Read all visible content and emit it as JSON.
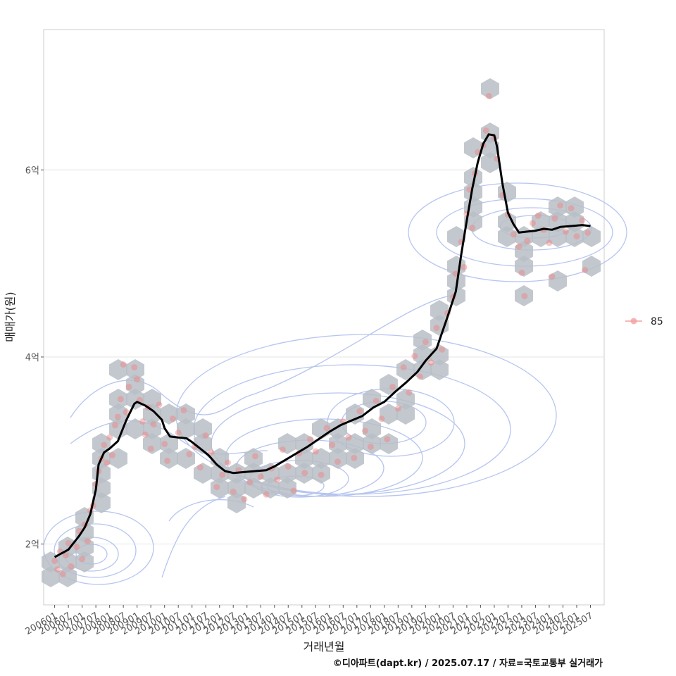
{
  "chart_data": {
    "type": "line",
    "xlabel": "거래년월",
    "ylabel": "매매가(원)",
    "caption": "©디아파트(dapt.kr) / 2025.07.17 / 자료=국토교통부 실거래가",
    "x_ticks": [
      "200601",
      "200607",
      "200701",
      "200707",
      "200801",
      "200807",
      "200901",
      "200907",
      "201001",
      "201007",
      "201101",
      "201107",
      "201201",
      "201207",
      "201301",
      "201307",
      "201401",
      "201407",
      "201501",
      "201507",
      "201601",
      "201607",
      "201701",
      "201707",
      "201801",
      "201807",
      "201901",
      "201907",
      "202001",
      "202007",
      "202101",
      "202107",
      "202201",
      "202207",
      "202301",
      "202307",
      "202401",
      "202407",
      "202501",
      "202507"
    ],
    "y_ticks": [
      {
        "value": 20000,
        "label": "2억"
      },
      {
        "value": 40000,
        "label": "4억"
      },
      {
        "value": 60000,
        "label": "6억"
      }
    ],
    "xlim": [
      2005.6,
      2026.0
    ],
    "ylim": [
      13500,
      75000
    ],
    "legend": {
      "position": "right",
      "entries": [
        {
          "label": "85",
          "color": "#f08080"
        }
      ]
    },
    "series": [
      {
        "name": "85",
        "kind": "trend",
        "color": "#000000",
        "points": [
          [
            2006.0,
            18600
          ],
          [
            2006.5,
            19400
          ],
          [
            2006.9,
            20900
          ],
          [
            2007.1,
            21800
          ],
          [
            2007.3,
            23200
          ],
          [
            2007.5,
            25800
          ],
          [
            2007.6,
            28500
          ],
          [
            2007.8,
            29800
          ],
          [
            2008.0,
            30200
          ],
          [
            2008.3,
            31000
          ],
          [
            2008.6,
            33200
          ],
          [
            2008.9,
            35000
          ],
          [
            2009.0,
            35200
          ],
          [
            2009.3,
            34800
          ],
          [
            2009.6,
            34200
          ],
          [
            2009.9,
            33300
          ],
          [
            2010.0,
            32400
          ],
          [
            2010.2,
            31500
          ],
          [
            2010.5,
            31400
          ],
          [
            2010.8,
            31300
          ],
          [
            2011.0,
            30900
          ],
          [
            2011.3,
            30200
          ],
          [
            2011.6,
            29500
          ],
          [
            2011.9,
            28500
          ],
          [
            2012.2,
            27800
          ],
          [
            2012.5,
            27600
          ],
          [
            2012.9,
            27700
          ],
          [
            2013.3,
            27800
          ],
          [
            2013.7,
            27900
          ],
          [
            2014.0,
            28300
          ],
          [
            2014.4,
            29000
          ],
          [
            2014.8,
            29700
          ],
          [
            2015.2,
            30400
          ],
          [
            2015.6,
            31200
          ],
          [
            2016.0,
            32000
          ],
          [
            2016.4,
            32700
          ],
          [
            2016.8,
            33200
          ],
          [
            2017.2,
            33700
          ],
          [
            2017.6,
            34600
          ],
          [
            2018.0,
            35200
          ],
          [
            2018.4,
            36300
          ],
          [
            2018.8,
            37300
          ],
          [
            2019.2,
            38400
          ],
          [
            2019.5,
            39600
          ],
          [
            2019.9,
            40900
          ],
          [
            2020.1,
            42600
          ],
          [
            2020.3,
            44300
          ],
          [
            2020.6,
            47000
          ],
          [
            2020.8,
            51000
          ],
          [
            2021.0,
            54600
          ],
          [
            2021.2,
            58000
          ],
          [
            2021.4,
            60800
          ],
          [
            2021.6,
            62800
          ],
          [
            2021.8,
            63800
          ],
          [
            2022.0,
            63700
          ],
          [
            2022.1,
            62500
          ],
          [
            2022.3,
            58500
          ],
          [
            2022.5,
            55400
          ],
          [
            2022.7,
            54200
          ],
          [
            2022.9,
            53300
          ],
          [
            2023.2,
            53400
          ],
          [
            2023.5,
            53500
          ],
          [
            2023.8,
            53700
          ],
          [
            2024.1,
            53600
          ],
          [
            2024.4,
            53900
          ],
          [
            2024.8,
            54000
          ],
          [
            2025.2,
            54100
          ],
          [
            2025.5,
            54000
          ]
        ]
      },
      {
        "name": "85",
        "kind": "transactions",
        "color": "#f08080",
        "points": [
          [
            2006.0,
            18200
          ],
          [
            2006.1,
            17300
          ],
          [
            2006.2,
            19200
          ],
          [
            2006.3,
            16800
          ],
          [
            2006.4,
            18800
          ],
          [
            2006.5,
            20100
          ],
          [
            2006.6,
            17600
          ],
          [
            2006.8,
            19700
          ],
          [
            2006.9,
            21400
          ],
          [
            2007.0,
            18400
          ],
          [
            2007.1,
            22100
          ],
          [
            2007.2,
            20300
          ],
          [
            2007.3,
            23600
          ],
          [
            2007.4,
            24100
          ],
          [
            2007.5,
            26400
          ],
          [
            2007.6,
            27800
          ],
          [
            2007.7,
            29100
          ],
          [
            2007.8,
            30600
          ],
          [
            2007.9,
            28700
          ],
          [
            2008.0,
            31400
          ],
          [
            2008.1,
            29500
          ],
          [
            2008.2,
            32700
          ],
          [
            2008.3,
            33600
          ],
          [
            2008.4,
            35500
          ],
          [
            2008.5,
            39200
          ],
          [
            2008.6,
            34100
          ],
          [
            2008.7,
            36800
          ],
          [
            2008.9,
            38900
          ],
          [
            2009.0,
            37600
          ],
          [
            2009.1,
            35400
          ],
          [
            2009.2,
            33100
          ],
          [
            2009.3,
            31700
          ],
          [
            2009.4,
            34600
          ],
          [
            2009.5,
            30200
          ],
          [
            2009.6,
            32800
          ],
          [
            2009.8,
            34900
          ],
          [
            2010.0,
            30700
          ],
          [
            2010.1,
            28900
          ],
          [
            2010.3,
            33400
          ],
          [
            2010.5,
            31900
          ],
          [
            2010.7,
            34300
          ],
          [
            2010.9,
            29600
          ],
          [
            2011.1,
            30400
          ],
          [
            2011.3,
            28200
          ],
          [
            2011.5,
            31600
          ],
          [
            2011.7,
            29800
          ],
          [
            2011.9,
            26100
          ],
          [
            2012.1,
            27400
          ],
          [
            2012.3,
            28700
          ],
          [
            2012.5,
            25600
          ],
          [
            2012.7,
            27900
          ],
          [
            2012.9,
            24800
          ],
          [
            2013.1,
            26600
          ],
          [
            2013.3,
            29400
          ],
          [
            2013.5,
            27200
          ],
          [
            2013.7,
            25300
          ],
          [
            2013.9,
            28100
          ],
          [
            2014.1,
            26900
          ],
          [
            2014.3,
            30100
          ],
          [
            2014.5,
            28300
          ],
          [
            2014.7,
            25700
          ],
          [
            2014.9,
            29700
          ],
          [
            2015.1,
            27600
          ],
          [
            2015.3,
            31200
          ],
          [
            2015.5,
            29900
          ],
          [
            2015.7,
            27400
          ],
          [
            2015.9,
            32400
          ],
          [
            2016.1,
            30600
          ],
          [
            2016.3,
            28800
          ],
          [
            2016.5,
            33100
          ],
          [
            2016.7,
            31400
          ],
          [
            2016.9,
            29200
          ],
          [
            2017.1,
            34200
          ],
          [
            2017.3,
            32100
          ],
          [
            2017.5,
            30400
          ],
          [
            2017.7,
            35300
          ],
          [
            2017.9,
            33400
          ],
          [
            2018.1,
            31200
          ],
          [
            2018.3,
            36800
          ],
          [
            2018.5,
            34500
          ],
          [
            2018.7,
            38900
          ],
          [
            2018.9,
            36200
          ],
          [
            2019.1,
            40100
          ],
          [
            2019.3,
            37900
          ],
          [
            2019.5,
            41600
          ],
          [
            2019.7,
            39400
          ],
          [
            2019.9,
            43100
          ],
          [
            2020.1,
            40800
          ],
          [
            2020.3,
            44700
          ],
          [
            2020.5,
            46400
          ],
          [
            2020.6,
            48900
          ],
          [
            2020.8,
            52300
          ],
          [
            2020.9,
            49600
          ],
          [
            2021.0,
            55300
          ],
          [
            2021.1,
            57900
          ],
          [
            2021.2,
            53800
          ],
          [
            2021.3,
            59600
          ],
          [
            2021.4,
            61900
          ],
          [
            2021.6,
            62600
          ],
          [
            2021.7,
            64200
          ],
          [
            2021.8,
            67900
          ],
          [
            2022.0,
            63400
          ],
          [
            2022.1,
            61200
          ],
          [
            2022.3,
            57300
          ],
          [
            2022.5,
            55200
          ],
          [
            2022.7,
            53100
          ],
          [
            2022.9,
            51800
          ],
          [
            2023.0,
            49000
          ],
          [
            2023.2,
            52400
          ],
          [
            2023.4,
            54300
          ],
          [
            2023.6,
            55100
          ],
          [
            2023.8,
            53600
          ],
          [
            2024.0,
            52200
          ],
          [
            2024.2,
            54800
          ],
          [
            2024.4,
            56200
          ],
          [
            2024.6,
            53400
          ],
          [
            2024.8,
            55900
          ],
          [
            2025.0,
            52900
          ],
          [
            2025.2,
            54600
          ],
          [
            2025.4,
            53300
          ],
          [
            2024.1,
            48600
          ],
          [
            2025.3,
            49300
          ],
          [
            2023.1,
            46500
          ]
        ]
      }
    ],
    "hexbin_counts_shown": true,
    "density_contours_shown": true,
    "grid": true
  }
}
